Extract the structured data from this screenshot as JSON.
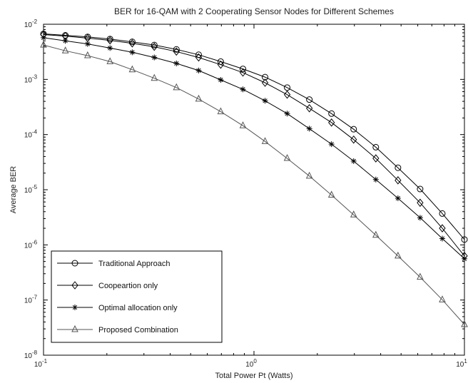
{
  "chart_data": {
    "type": "line",
    "title": "BER for 16-QAM with 2 Cooperating Sensor Nodes for Different Schemes",
    "xlabel": "Total Power Pt (Watts)",
    "ylabel": "Average BER",
    "xscale": "log",
    "yscale": "log",
    "xlim": [
      0.1,
      10
    ],
    "ylim": [
      1e-08,
      0.01
    ],
    "x_ticks": [
      {
        "value": 0.1,
        "base": "10",
        "exp": "-1"
      },
      {
        "value": 1,
        "base": "10",
        "exp": "0"
      },
      {
        "value": 10,
        "base": "10",
        "exp": "1"
      }
    ],
    "y_ticks": [
      {
        "value": 0.01,
        "base": "10",
        "exp": "-2"
      },
      {
        "value": 0.001,
        "base": "10",
        "exp": "-3"
      },
      {
        "value": 0.0001,
        "base": "10",
        "exp": "-4"
      },
      {
        "value": 1e-05,
        "base": "10",
        "exp": "-5"
      },
      {
        "value": 1e-06,
        "base": "10",
        "exp": "-6"
      },
      {
        "value": 1e-07,
        "base": "10",
        "exp": "-7"
      },
      {
        "value": 1e-08,
        "base": "10",
        "exp": "-8"
      }
    ],
    "grid": false,
    "legend_position": "bottom-left",
    "x": [
      0.1,
      0.127,
      0.162,
      0.207,
      0.264,
      0.336,
      0.428,
      0.546,
      0.695,
      0.886,
      1.129,
      1.438,
      1.833,
      2.336,
      2.976,
      3.793,
      4.833,
      6.158,
      7.848,
      10.0
    ],
    "series": [
      {
        "name": "Traditional Approach",
        "marker": "circle",
        "color": "#000000",
        "values": [
          0.0067,
          0.0063,
          0.0059,
          0.0054,
          0.0048,
          0.0042,
          0.0035,
          0.0028,
          0.0021,
          0.00155,
          0.0011,
          0.00071,
          0.00043,
          0.00024,
          0.000125,
          5.9e-05,
          2.5e-05,
          1.03e-05,
          3.7e-06,
          1.25e-06
        ]
      },
      {
        "name": "Coopeartion only",
        "marker": "diamond",
        "color": "#000000",
        "values": [
          0.0065,
          0.0061,
          0.0056,
          0.0051,
          0.0045,
          0.0039,
          0.0032,
          0.0025,
          0.00185,
          0.00133,
          0.00087,
          0.00053,
          0.0003,
          0.000165,
          8.1e-05,
          3.7e-05,
          1.48e-05,
          5.8e-06,
          2e-06,
          6.3e-07
        ]
      },
      {
        "name": "Optimal allocation only",
        "marker": "star",
        "color": "#000000",
        "values": [
          0.0057,
          0.005,
          0.0044,
          0.0037,
          0.0031,
          0.0025,
          0.00195,
          0.00145,
          0.00098,
          0.00066,
          0.00041,
          0.00024,
          0.000128,
          6.7e-05,
          3.3e-05,
          1.53e-05,
          7e-06,
          3.1e-06,
          1.3e-06,
          5.6e-07
        ]
      },
      {
        "name": "Proposed Combination",
        "marker": "triangle",
        "color": "#555555",
        "values": [
          0.0042,
          0.0033,
          0.0027,
          0.0021,
          0.0015,
          0.00105,
          0.00071,
          0.00044,
          0.00026,
          0.000145,
          7.5e-05,
          3.7e-05,
          1.77e-05,
          8e-06,
          3.5e-06,
          1.5e-06,
          6.3e-07,
          2.6e-07,
          1.01e-07,
          3.6e-08
        ]
      }
    ]
  }
}
